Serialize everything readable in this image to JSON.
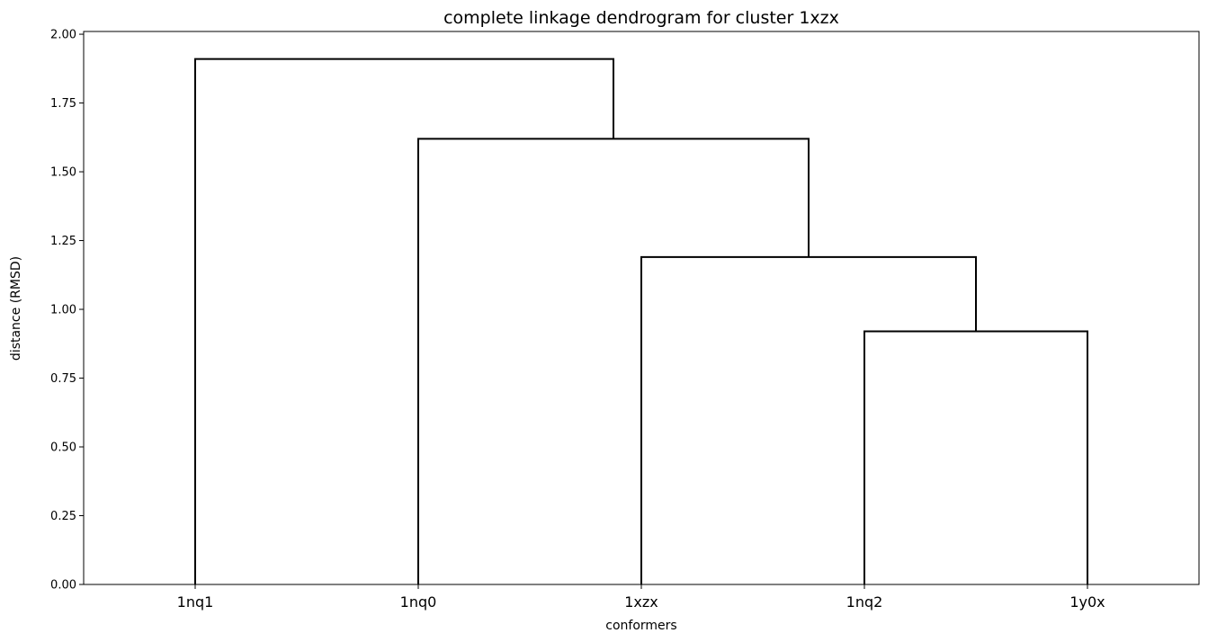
{
  "chart_data": {
    "type": "dendrogram",
    "title": "complete linkage dendrogram for cluster 1xzx",
    "xlabel": "conformers",
    "ylabel": "distance (RMSD)",
    "ylim": [
      0,
      2.01
    ],
    "yticks": [
      "0.00",
      "0.25",
      "0.50",
      "0.75",
      "1.00",
      "1.25",
      "1.50",
      "1.75",
      "2.00"
    ],
    "leaves": [
      "1nq1",
      "1nq0",
      "1xzx",
      "1nq2",
      "1y0x"
    ],
    "merges": [
      {
        "left": "1nq2",
        "right": "1y0x",
        "distance": 0.92
      },
      {
        "left": "1xzx",
        "right": "1nq2+1y0x",
        "distance": 1.19
      },
      {
        "left": "1nq0",
        "right": "1xzx+1nq2+1y0x",
        "distance": 1.62
      },
      {
        "left": "1nq1",
        "right": "1nq0+1xzx+1nq2+1y0x",
        "distance": 1.91
      }
    ],
    "line_color": "#000000",
    "grid": false,
    "legend": "none"
  }
}
